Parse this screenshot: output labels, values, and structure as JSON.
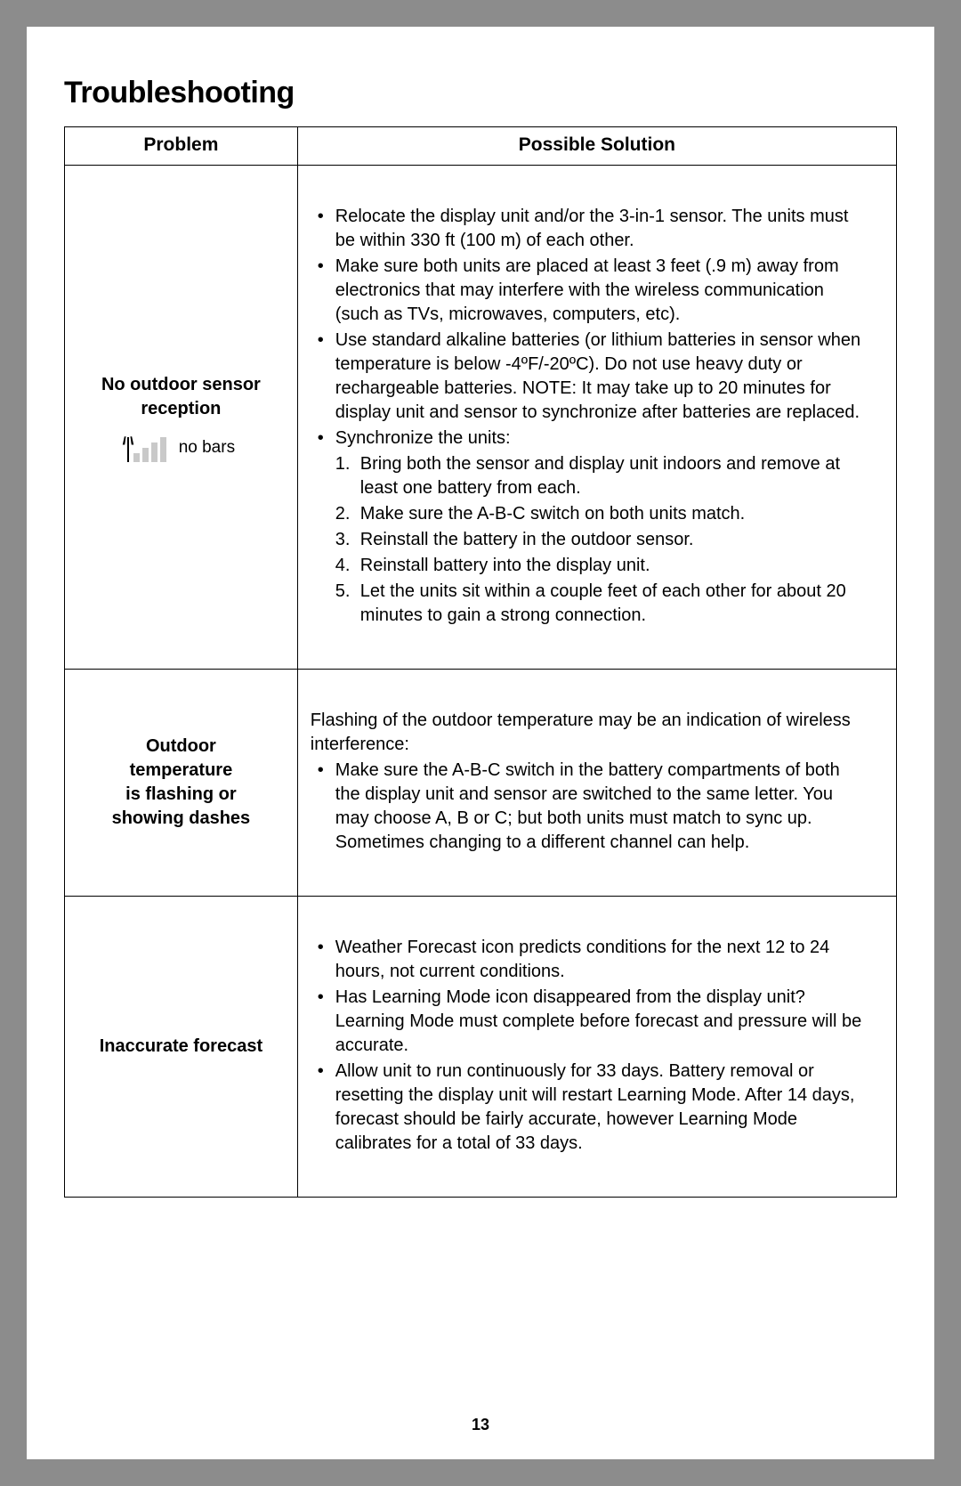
{
  "title": "Troubleshooting",
  "pageNumber": "13",
  "headers": {
    "problem": "Problem",
    "solution": "Possible Solution"
  },
  "colors": {
    "pageBg": "#ffffff",
    "bodyBg": "#8c8c8c",
    "border": "#000000",
    "signalBarInactive": "#c9c9c9",
    "textColor": "#000000"
  },
  "rows": [
    {
      "problemLine1": "No outdoor sensor",
      "problemLine2": "reception",
      "signalLabel": "no bars",
      "bullets": [
        "Relocate the display unit and/or the 3-in-1 sensor. The units must be within 330 ft (100 m) of each other.",
        "Make sure both units are placed at least 3 feet (.9 m) away from electronics that may interfere with the wireless communication (such as TVs, microwaves, computers, etc).",
        "Use standard alkaline batteries (or lithium batteries in sensor when temperature is below -4ºF/-20ºC). Do not use heavy duty or rechargeable batteries. NOTE: It may take up to 20 minutes for display unit and sensor to synchronize after batteries are replaced.",
        "Synchronize the units:"
      ],
      "steps": [
        "Bring both the sensor and display unit indoors and remove at least one battery from each.",
        "Make sure the A-B-C switch on both units match.",
        "Reinstall the battery in the outdoor sensor.",
        "Reinstall battery into the display unit.",
        "Let the units sit within a couple feet of each other for about 20 minutes to gain a strong connection."
      ]
    },
    {
      "problemLine1": "Outdoor",
      "problemLine2": "temperature",
      "problemLine3": "is flashing or",
      "problemLine4": "showing dashes",
      "intro": "Flashing of the outdoor temperature may be an indication of wireless interference:",
      "bullets": [
        "Make sure the A-B-C switch in the battery compartments of both the display unit and sensor are switched to the same letter. You may choose A, B or C; but both units must match to sync up. Sometimes changing to a different channel can help."
      ]
    },
    {
      "problemLine1": "Inaccurate forecast",
      "bullets": [
        "Weather Forecast icon predicts conditions for the next 12 to 24 hours, not current conditions.",
        "Has Learning Mode icon disappeared from the display unit? Learning Mode must complete before forecast and pressure will be accurate.",
        "Allow unit to run continuously for 33 days. Battery removal or resetting the display unit will restart Learning Mode. After 14 days, forecast should be fairly accurate, however Learning Mode calibrates for a total of 33 days."
      ]
    }
  ]
}
